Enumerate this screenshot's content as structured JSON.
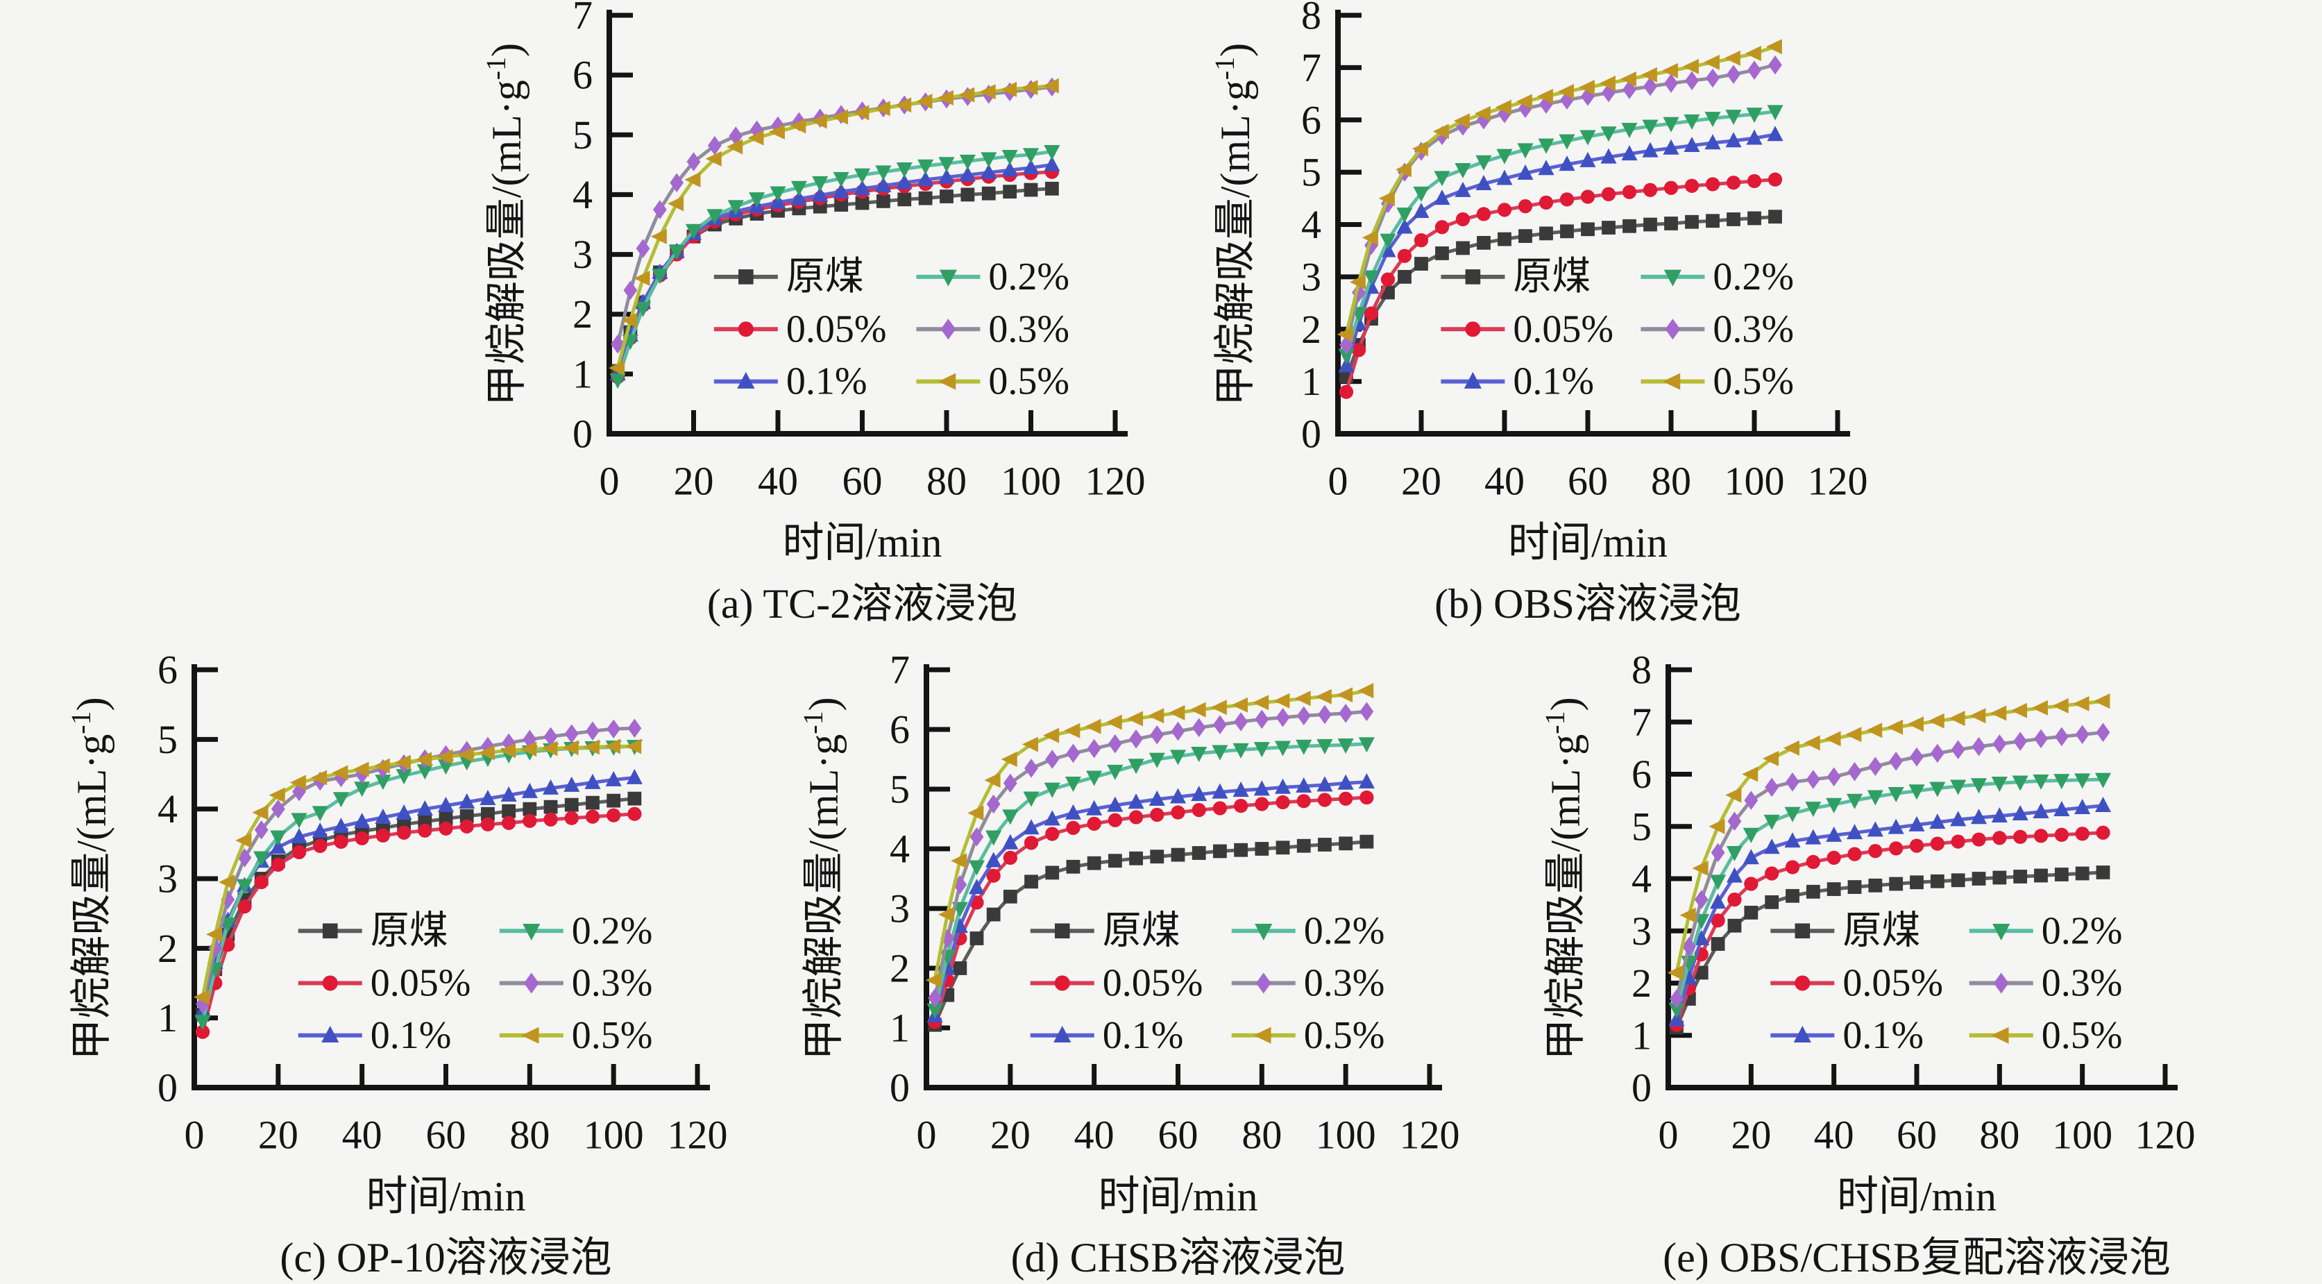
{
  "figure": {
    "background": "#f5f5f4",
    "text_color": "#141414",
    "axis_color": "#141414",
    "xlabel": "时间/min",
    "ylabel": "甲烷解吸量/(mL·g⁻¹)",
    "ylabel_parts": {
      "prefix": "甲烷解吸量/(mL·g",
      "sup": "-1",
      "suffix": ")"
    },
    "legend_labels": [
      "原煤",
      "0.05%",
      "0.1%",
      "0.2%",
      "0.3%",
      "0.5%"
    ],
    "series_styles": [
      {
        "key": "raw-coal",
        "label": "原煤",
        "marker": "square",
        "line_color": "#5c5c5c",
        "marker_color": "#3a3a3a"
      },
      {
        "key": "0-05pct",
        "label": "0.05%",
        "marker": "circle",
        "line_color": "#d93b57",
        "marker_color": "#e01935"
      },
      {
        "key": "0-1pct",
        "label": "0.1%",
        "marker": "triangle-up",
        "line_color": "#5a60d2",
        "marker_color": "#3f51c2"
      },
      {
        "key": "0-2pct",
        "label": "0.2%",
        "marker": "triangle-down",
        "line_color": "#5abda0",
        "marker_color": "#2f9f63"
      },
      {
        "key": "0-3pct",
        "label": "0.3%",
        "marker": "diamond",
        "line_color": "#908c9c",
        "marker_color": "#a468ce"
      },
      {
        "key": "0-5pct",
        "label": "0.5%",
        "marker": "triangle-left",
        "line_color": "#b5bd32",
        "marker_color": "#c0951f"
      }
    ]
  },
  "chart_data": [
    {
      "id": "a",
      "type": "line",
      "caption": "(a) TC-2溶液浸泡",
      "xlabel": "时间/min",
      "ylabel": "甲烷解吸量/(mL·g⁻¹)",
      "xlim": [
        0,
        120
      ],
      "ylim": [
        0,
        7
      ],
      "x_ticks": [
        0,
        20,
        40,
        60,
        80,
        100,
        120
      ],
      "y_ticks": [
        0,
        1,
        2,
        3,
        4,
        5,
        6,
        7
      ],
      "x": [
        2,
        5,
        8,
        12,
        16,
        20,
        25,
        30,
        35,
        40,
        45,
        50,
        55,
        60,
        65,
        70,
        75,
        80,
        85,
        90,
        95,
        100,
        105
      ],
      "series": [
        {
          "name": "原煤",
          "values": [
            1.05,
            1.7,
            2.2,
            2.7,
            3.05,
            3.3,
            3.5,
            3.6,
            3.68,
            3.73,
            3.77,
            3.8,
            3.83,
            3.86,
            3.89,
            3.92,
            3.94,
            3.97,
            4.0,
            4.02,
            4.05,
            4.08,
            4.1
          ]
        },
        {
          "name": "0.05%",
          "values": [
            0.95,
            1.6,
            2.15,
            2.65,
            3.0,
            3.3,
            3.55,
            3.67,
            3.75,
            3.82,
            3.88,
            3.94,
            4.0,
            4.05,
            4.1,
            4.14,
            4.18,
            4.22,
            4.26,
            4.3,
            4.33,
            4.36,
            4.38
          ]
        },
        {
          "name": "0.1%",
          "values": [
            1.0,
            1.65,
            2.2,
            2.7,
            3.05,
            3.35,
            3.6,
            3.72,
            3.8,
            3.87,
            3.93,
            3.99,
            4.05,
            4.1,
            4.15,
            4.2,
            4.25,
            4.29,
            4.33,
            4.37,
            4.41,
            4.45,
            4.5
          ]
        },
        {
          "name": "0.2%",
          "values": [
            0.9,
            1.55,
            2.1,
            2.65,
            3.05,
            3.4,
            3.65,
            3.8,
            3.93,
            4.03,
            4.12,
            4.2,
            4.27,
            4.33,
            4.38,
            4.43,
            4.48,
            4.52,
            4.56,
            4.6,
            4.64,
            4.67,
            4.72
          ]
        },
        {
          "name": "0.3%",
          "values": [
            1.5,
            2.4,
            3.1,
            3.75,
            4.2,
            4.55,
            4.82,
            4.98,
            5.08,
            5.15,
            5.22,
            5.28,
            5.34,
            5.4,
            5.45,
            5.5,
            5.55,
            5.6,
            5.64,
            5.68,
            5.72,
            5.76,
            5.8
          ]
        },
        {
          "name": "0.5%",
          "values": [
            1.1,
            1.9,
            2.6,
            3.3,
            3.85,
            4.25,
            4.6,
            4.8,
            4.95,
            5.05,
            5.15,
            5.23,
            5.3,
            5.37,
            5.44,
            5.5,
            5.56,
            5.62,
            5.67,
            5.72,
            5.76,
            5.79,
            5.82
          ]
        }
      ]
    },
    {
      "id": "b",
      "type": "line",
      "caption": "(b) OBS溶液浸泡",
      "xlabel": "时间/min",
      "ylabel": "甲烷解吸量/(mL·g⁻¹)",
      "xlim": [
        0,
        120
      ],
      "ylim": [
        0,
        8
      ],
      "x_ticks": [
        0,
        20,
        40,
        60,
        80,
        100,
        120
      ],
      "y_ticks": [
        0,
        1,
        2,
        3,
        4,
        5,
        6,
        7,
        8
      ],
      "x": [
        2,
        5,
        8,
        12,
        16,
        20,
        25,
        30,
        35,
        40,
        45,
        50,
        55,
        60,
        65,
        70,
        75,
        80,
        85,
        90,
        95,
        100,
        105
      ],
      "series": [
        {
          "name": "原煤",
          "values": [
            1.1,
            1.7,
            2.2,
            2.7,
            3.0,
            3.25,
            3.45,
            3.55,
            3.65,
            3.72,
            3.78,
            3.83,
            3.87,
            3.91,
            3.94,
            3.97,
            4.0,
            4.02,
            4.05,
            4.07,
            4.1,
            4.12,
            4.15
          ]
        },
        {
          "name": "0.05%",
          "values": [
            0.8,
            1.6,
            2.3,
            2.95,
            3.4,
            3.7,
            3.95,
            4.1,
            4.2,
            4.28,
            4.35,
            4.42,
            4.48,
            4.53,
            4.58,
            4.62,
            4.66,
            4.7,
            4.74,
            4.77,
            4.8,
            4.83,
            4.86
          ]
        },
        {
          "name": "0.1%",
          "values": [
            1.3,
            2.1,
            2.8,
            3.5,
            3.95,
            4.25,
            4.5,
            4.65,
            4.78,
            4.88,
            4.98,
            5.07,
            5.15,
            5.22,
            5.29,
            5.35,
            5.41,
            5.46,
            5.51,
            5.56,
            5.6,
            5.65,
            5.72
          ]
        },
        {
          "name": "0.2%",
          "values": [
            1.5,
            2.3,
            3.0,
            3.7,
            4.2,
            4.6,
            4.9,
            5.05,
            5.2,
            5.32,
            5.43,
            5.52,
            5.6,
            5.68,
            5.75,
            5.82,
            5.88,
            5.93,
            5.98,
            6.03,
            6.07,
            6.11,
            6.16
          ]
        },
        {
          "name": "0.3%",
          "values": [
            1.7,
            2.7,
            3.6,
            4.4,
            5.0,
            5.4,
            5.7,
            5.88,
            6.0,
            6.12,
            6.22,
            6.3,
            6.38,
            6.45,
            6.52,
            6.58,
            6.64,
            6.7,
            6.75,
            6.8,
            6.87,
            6.95,
            7.05
          ]
        },
        {
          "name": "0.5%",
          "values": [
            1.9,
            2.9,
            3.75,
            4.5,
            5.05,
            5.45,
            5.78,
            5.98,
            6.12,
            6.24,
            6.35,
            6.45,
            6.54,
            6.62,
            6.7,
            6.78,
            6.86,
            6.94,
            7.02,
            7.1,
            7.18,
            7.27,
            7.4
          ]
        }
      ]
    },
    {
      "id": "c",
      "type": "line",
      "caption": "(c) OP-10溶液浸泡",
      "xlabel": "时间/min",
      "ylabel": "甲烷解吸量/(mL·g⁻¹)",
      "xlim": [
        0,
        120
      ],
      "ylim": [
        0,
        6
      ],
      "x_ticks": [
        0,
        20,
        40,
        60,
        80,
        100,
        120
      ],
      "y_ticks": [
        0,
        1,
        2,
        3,
        4,
        5,
        6
      ],
      "x": [
        2,
        5,
        8,
        12,
        16,
        20,
        25,
        30,
        35,
        40,
        45,
        50,
        55,
        60,
        65,
        70,
        75,
        80,
        85,
        90,
        95,
        100,
        105
      ],
      "series": [
        {
          "name": "原煤",
          "values": [
            1.05,
            1.7,
            2.2,
            2.7,
            3.0,
            3.25,
            3.45,
            3.55,
            3.63,
            3.68,
            3.73,
            3.78,
            3.82,
            3.86,
            3.9,
            3.93,
            3.97,
            4.0,
            4.03,
            4.06,
            4.09,
            4.12,
            4.15
          ]
        },
        {
          "name": "0.05%",
          "values": [
            0.8,
            1.5,
            2.05,
            2.6,
            2.95,
            3.2,
            3.38,
            3.47,
            3.53,
            3.58,
            3.62,
            3.66,
            3.69,
            3.72,
            3.75,
            3.78,
            3.8,
            3.83,
            3.85,
            3.87,
            3.89,
            3.91,
            3.93
          ]
        },
        {
          "name": "0.1%",
          "values": [
            1.1,
            1.8,
            2.4,
            2.9,
            3.25,
            3.45,
            3.6,
            3.68,
            3.75,
            3.82,
            3.88,
            3.94,
            4.0,
            4.05,
            4.1,
            4.15,
            4.2,
            4.25,
            4.3,
            4.34,
            4.38,
            4.42,
            4.45
          ]
        },
        {
          "name": "0.2%",
          "values": [
            0.95,
            1.7,
            2.35,
            2.9,
            3.3,
            3.6,
            3.85,
            3.95,
            4.15,
            4.3,
            4.4,
            4.48,
            4.55,
            4.62,
            4.68,
            4.73,
            4.78,
            4.82,
            4.85,
            4.87,
            4.88,
            4.89,
            4.9
          ]
        },
        {
          "name": "0.3%",
          "values": [
            1.2,
            2.0,
            2.7,
            3.3,
            3.7,
            4.0,
            4.25,
            4.4,
            4.45,
            4.5,
            4.58,
            4.65,
            4.72,
            4.78,
            4.84,
            4.9,
            4.95,
            5.0,
            5.04,
            5.08,
            5.12,
            5.15,
            5.16
          ]
        },
        {
          "name": "0.5%",
          "values": [
            1.3,
            2.2,
            2.95,
            3.55,
            3.95,
            4.2,
            4.38,
            4.45,
            4.52,
            4.57,
            4.62,
            4.67,
            4.71,
            4.75,
            4.78,
            4.81,
            4.84,
            4.86,
            4.87,
            4.88,
            4.89,
            4.9,
            4.9
          ]
        }
      ]
    },
    {
      "id": "d",
      "type": "line",
      "caption": "(d) CHSB溶液浸泡",
      "xlabel": "时间/min",
      "ylabel": "甲烷解吸量/(mL·g⁻¹)",
      "xlim": [
        0,
        120
      ],
      "ylim": [
        0,
        7
      ],
      "x_ticks": [
        0,
        20,
        40,
        60,
        80,
        100,
        120
      ],
      "y_ticks": [
        0,
        1,
        2,
        3,
        4,
        5,
        6,
        7
      ],
      "x": [
        2,
        5,
        8,
        12,
        16,
        20,
        25,
        30,
        35,
        40,
        45,
        50,
        55,
        60,
        65,
        70,
        75,
        80,
        85,
        90,
        95,
        100,
        105
      ],
      "series": [
        {
          "name": "原煤",
          "values": [
            1.05,
            1.55,
            2.0,
            2.5,
            2.9,
            3.2,
            3.45,
            3.6,
            3.7,
            3.76,
            3.8,
            3.84,
            3.87,
            3.9,
            3.93,
            3.96,
            3.98,
            4.0,
            4.02,
            4.05,
            4.07,
            4.09,
            4.12
          ]
        },
        {
          "name": "0.05%",
          "values": [
            1.1,
            1.8,
            2.5,
            3.1,
            3.55,
            3.85,
            4.1,
            4.25,
            4.35,
            4.42,
            4.48,
            4.53,
            4.57,
            4.61,
            4.65,
            4.68,
            4.72,
            4.75,
            4.78,
            4.8,
            4.82,
            4.84,
            4.86
          ]
        },
        {
          "name": "0.1%",
          "values": [
            1.2,
            2.0,
            2.7,
            3.35,
            3.8,
            4.1,
            4.35,
            4.5,
            4.6,
            4.67,
            4.73,
            4.78,
            4.83,
            4.87,
            4.91,
            4.95,
            4.98,
            5.0,
            5.03,
            5.05,
            5.07,
            5.1,
            5.12
          ]
        },
        {
          "name": "0.2%",
          "values": [
            1.3,
            2.2,
            3.0,
            3.7,
            4.2,
            4.55,
            4.85,
            5.0,
            5.1,
            5.2,
            5.3,
            5.4,
            5.5,
            5.55,
            5.6,
            5.63,
            5.66,
            5.68,
            5.7,
            5.72,
            5.73,
            5.74,
            5.76
          ]
        },
        {
          "name": "0.3%",
          "values": [
            1.5,
            2.5,
            3.4,
            4.2,
            4.75,
            5.1,
            5.35,
            5.5,
            5.6,
            5.68,
            5.76,
            5.84,
            5.91,
            5.97,
            6.03,
            6.08,
            6.13,
            6.17,
            6.2,
            6.23,
            6.25,
            6.27,
            6.3
          ]
        },
        {
          "name": "0.5%",
          "values": [
            1.8,
            2.9,
            3.8,
            4.6,
            5.15,
            5.5,
            5.75,
            5.9,
            5.98,
            6.05,
            6.12,
            6.18,
            6.23,
            6.28,
            6.33,
            6.37,
            6.41,
            6.45,
            6.48,
            6.52,
            6.55,
            6.58,
            6.65
          ]
        }
      ]
    },
    {
      "id": "e",
      "type": "line",
      "caption": "(e) OBS/CHSB复配溶液浸泡",
      "xlabel": "时间/min",
      "ylabel": "甲烷解吸量/(mL·g⁻¹)",
      "xlim": [
        0,
        120
      ],
      "ylim": [
        0,
        8
      ],
      "x_ticks": [
        0,
        20,
        40,
        60,
        80,
        100,
        120
      ],
      "y_ticks": [
        0,
        1,
        2,
        3,
        4,
        5,
        6,
        7,
        8
      ],
      "x": [
        2,
        5,
        8,
        12,
        16,
        20,
        25,
        30,
        35,
        40,
        45,
        50,
        55,
        60,
        65,
        70,
        75,
        80,
        85,
        90,
        95,
        100,
        105
      ],
      "series": [
        {
          "name": "原煤",
          "values": [
            1.15,
            1.7,
            2.2,
            2.75,
            3.1,
            3.35,
            3.55,
            3.67,
            3.75,
            3.8,
            3.84,
            3.87,
            3.9,
            3.93,
            3.95,
            3.97,
            4.0,
            4.02,
            4.04,
            4.06,
            4.08,
            4.1,
            4.12
          ]
        },
        {
          "name": "0.05%",
          "values": [
            1.2,
            1.9,
            2.55,
            3.2,
            3.6,
            3.9,
            4.1,
            4.22,
            4.32,
            4.4,
            4.47,
            4.53,
            4.58,
            4.63,
            4.67,
            4.71,
            4.75,
            4.78,
            4.8,
            4.82,
            4.84,
            4.86,
            4.88
          ]
        },
        {
          "name": "0.1%",
          "values": [
            1.3,
            2.1,
            2.85,
            3.55,
            4.05,
            4.4,
            4.6,
            4.72,
            4.78,
            4.83,
            4.88,
            4.93,
            4.98,
            5.03,
            5.08,
            5.13,
            5.17,
            5.2,
            5.24,
            5.28,
            5.32,
            5.36,
            5.4
          ]
        },
        {
          "name": "0.2%",
          "values": [
            1.5,
            2.4,
            3.2,
            3.95,
            4.5,
            4.85,
            5.1,
            5.25,
            5.35,
            5.42,
            5.5,
            5.57,
            5.63,
            5.68,
            5.73,
            5.77,
            5.8,
            5.83,
            5.85,
            5.87,
            5.88,
            5.89,
            5.9
          ]
        },
        {
          "name": "0.3%",
          "values": [
            1.7,
            2.7,
            3.6,
            4.5,
            5.1,
            5.5,
            5.75,
            5.85,
            5.9,
            5.95,
            6.05,
            6.15,
            6.25,
            6.33,
            6.4,
            6.47,
            6.53,
            6.58,
            6.63,
            6.68,
            6.72,
            6.76,
            6.8
          ]
        },
        {
          "name": "0.5%",
          "values": [
            2.2,
            3.3,
            4.2,
            5.0,
            5.6,
            6.0,
            6.3,
            6.5,
            6.6,
            6.68,
            6.76,
            6.84,
            6.9,
            6.96,
            7.02,
            7.07,
            7.12,
            7.17,
            7.22,
            7.27,
            7.31,
            7.35,
            7.4
          ]
        }
      ]
    }
  ]
}
